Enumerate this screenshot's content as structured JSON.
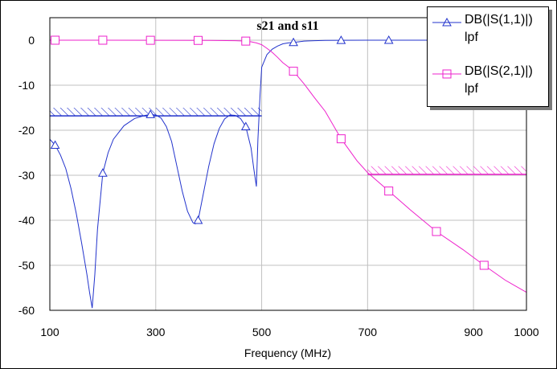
{
  "chart_data": {
    "type": "line",
    "title": "s21 and s11",
    "xlabel": "Frequency (MHz)",
    "ylabel": "",
    "xlim": [
      100,
      1000
    ],
    "ylim": [
      -60,
      5
    ],
    "xticks": [
      100,
      300,
      500,
      700,
      900,
      1000
    ],
    "yticks": [
      0,
      -10,
      -20,
      -30,
      -40,
      -50,
      -60
    ],
    "grid": true,
    "legend": "top-right",
    "series": [
      {
        "name": "DB(|S(1,1)|)",
        "subtitle": "lpf",
        "color": "#2233cc",
        "marker": "triangle",
        "x": [
          100,
          110,
          120,
          130,
          140,
          150,
          160,
          170,
          175,
          180,
          185,
          190,
          200,
          210,
          220,
          240,
          260,
          280,
          290,
          300,
          310,
          320,
          330,
          340,
          350,
          360,
          370,
          375,
          380,
          385,
          390,
          400,
          410,
          420,
          430,
          440,
          450,
          460,
          470,
          480,
          485,
          490,
          493,
          497,
          500,
          510,
          520,
          530,
          540,
          550,
          560,
          570,
          580,
          600,
          620,
          650,
          700,
          750,
          800,
          850,
          900,
          950,
          1000
        ],
        "y": [
          -22,
          -23.3,
          -25.5,
          -28.5,
          -33,
          -38.5,
          -45,
          -52,
          -56,
          -59.5,
          -52,
          -42,
          -29.5,
          -25,
          -22,
          -19,
          -17.4,
          -16.7,
          -16.5,
          -16.6,
          -17.3,
          -19.2,
          -22.5,
          -28,
          -33.5,
          -38,
          -40.5,
          -40.8,
          -40,
          -37,
          -34,
          -28,
          -23,
          -19.6,
          -17.5,
          -16.6,
          -16.7,
          -17.4,
          -19.2,
          -24,
          -28.5,
          -32.5,
          -22,
          -12,
          -6,
          -3.2,
          -2,
          -1.3,
          -0.8,
          -0.6,
          -0.5,
          -0.35,
          -0.2,
          -0.1,
          -0.05,
          -0.02,
          0,
          0,
          0,
          0,
          0,
          0,
          0
        ],
        "markers_x": [
          110,
          200,
          290,
          380,
          470,
          560,
          650,
          740,
          830,
          920
        ]
      },
      {
        "name": "DB(|S(2,1)|)",
        "subtitle": "lpf",
        "color": "#ee22cc",
        "marker": "square",
        "x": [
          100,
          200,
          300,
          400,
          450,
          470,
          480,
          490,
          500,
          510,
          520,
          530,
          540,
          550,
          560,
          580,
          600,
          620,
          650,
          680,
          700,
          740,
          780,
          830,
          880,
          920,
          960,
          1000
        ],
        "y": [
          0,
          0,
          -0.02,
          -0.05,
          -0.1,
          -0.2,
          -0.35,
          -0.6,
          -1.0,
          -1.8,
          -2.7,
          -3.8,
          -5.0,
          -5.9,
          -6.9,
          -9.7,
          -12.8,
          -15.8,
          -21.9,
          -26.8,
          -29.4,
          -33.5,
          -37.6,
          -42.5,
          -46.5,
          -50.0,
          -53.3,
          -56.0
        ],
        "markers_x": [
          110,
          200,
          290,
          380,
          470,
          560,
          650,
          740,
          830,
          920
        ]
      }
    ],
    "spec_bands": [
      {
        "series": "DB(|S(1,1)|)",
        "x_start": 100,
        "x_end": 500,
        "y_line": -16.8,
        "y_top": -15,
        "color": "#2233cc"
      },
      {
        "series": "DB(|S(2,1)|)",
        "x_start": 700,
        "x_end": 1000,
        "y_line": -29.8,
        "y_top": -28,
        "color": "#ee22cc"
      }
    ]
  }
}
